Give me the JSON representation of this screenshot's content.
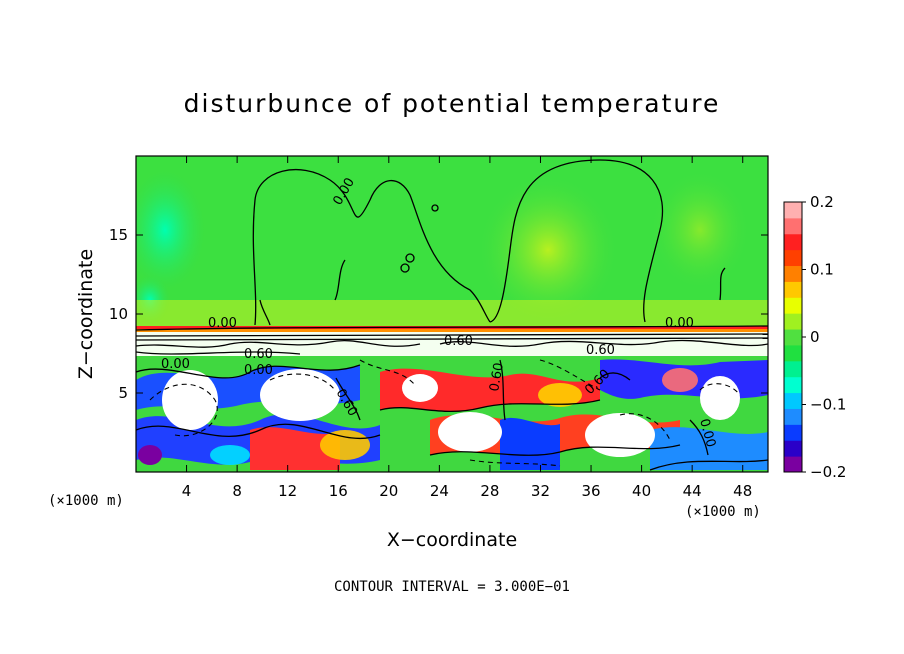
{
  "chart_data": {
    "type": "heatmap",
    "title": "disturbunce of potential temperature",
    "xlabel": "X−coordinate",
    "ylabel": "Z−coordinate",
    "x_unit": "(×1000 m)",
    "z_unit": "(×1000 m)",
    "xlim": [
      0,
      50
    ],
    "ylim": [
      0,
      20
    ],
    "x_ticks": [
      4,
      8,
      12,
      16,
      20,
      24,
      28,
      32,
      36,
      40,
      44,
      48
    ],
    "x_tick_labels": [
      "4",
      "8",
      "12",
      "16",
      "20",
      "24",
      "28",
      "32",
      "36",
      "40",
      "44",
      "48"
    ],
    "y_ticks": [
      5,
      10,
      15
    ],
    "y_tick_labels": [
      "5",
      "10",
      "15"
    ],
    "colorbar": {
      "range": [
        -0.2,
        0.2
      ],
      "tick_values": [
        -0.2,
        -0.1,
        0,
        0.1,
        0.2
      ],
      "tick_labels": [
        "−0.2",
        "−0.1",
        "0",
        "0.1",
        "0.2"
      ],
      "colors": [
        "#7a00a0",
        "#2a00c8",
        "#0a3cff",
        "#1e8cff",
        "#00c8ff",
        "#00ffd0",
        "#00f090",
        "#20e040",
        "#50e040",
        "#a0f020",
        "#e8ff00",
        "#ffc800",
        "#ff8000",
        "#ff4000",
        "#ff2020",
        "#ff7070",
        "#ffb0b0"
      ]
    },
    "contour_labels": [
      "0.00",
      "0.00",
      "0.00",
      "0.60",
      "0.60",
      "0.60",
      "0.00",
      "0.00",
      "0.60",
      "0.60",
      "0.60",
      "0.00"
    ],
    "contour_interval_note": "CONTOUR INTERVAL = 3.000E−01"
  }
}
